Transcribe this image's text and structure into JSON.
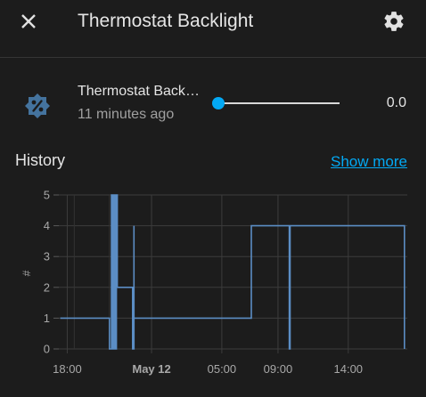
{
  "header": {
    "title": "Thermostat Backlight",
    "close_icon": "close-icon",
    "settings_icon": "gear-icon"
  },
  "entity": {
    "icon": "brightness-percent-icon",
    "name": "Thermostat Backlight",
    "last_changed": "11 minutes ago",
    "value": "0.0",
    "slider_fraction": 0,
    "accent_color": "#03a9f4"
  },
  "history": {
    "label": "History",
    "show_more": "Show more"
  },
  "chart_data": {
    "type": "line",
    "step": true,
    "title": "",
    "xlabel": "",
    "ylabel": "#",
    "ylim": [
      0,
      5
    ],
    "yticks": [
      "0",
      "1",
      "2",
      "3",
      "4",
      "5"
    ],
    "xticks": [
      "18:00",
      "May 12",
      "05:00",
      "09:00",
      "14:00"
    ],
    "x_unit": "hours since 18:00",
    "line_color": "#5b8dc4",
    "grid": true,
    "series": [
      {
        "points": [
          [
            -0.5,
            1
          ],
          [
            3.0,
            1
          ],
          [
            3.0,
            0
          ],
          [
            3.15,
            0
          ],
          [
            3.15,
            5
          ],
          [
            3.25,
            5
          ],
          [
            3.25,
            0
          ],
          [
            3.35,
            0
          ],
          [
            3.35,
            5
          ],
          [
            3.42,
            5
          ],
          [
            3.42,
            0
          ],
          [
            3.5,
            0
          ],
          [
            3.5,
            5
          ],
          [
            3.56,
            5
          ],
          [
            3.56,
            2
          ],
          [
            4.65,
            2
          ],
          [
            4.65,
            0
          ],
          [
            4.75,
            0
          ],
          [
            4.75,
            4
          ],
          [
            4.75,
            1
          ],
          [
            13.1,
            1
          ],
          [
            13.1,
            4
          ],
          [
            15.8,
            4
          ],
          [
            15.8,
            0
          ],
          [
            15.86,
            0
          ],
          [
            15.86,
            4
          ],
          [
            24.0,
            4
          ],
          [
            24.0,
            0
          ]
        ]
      }
    ]
  }
}
